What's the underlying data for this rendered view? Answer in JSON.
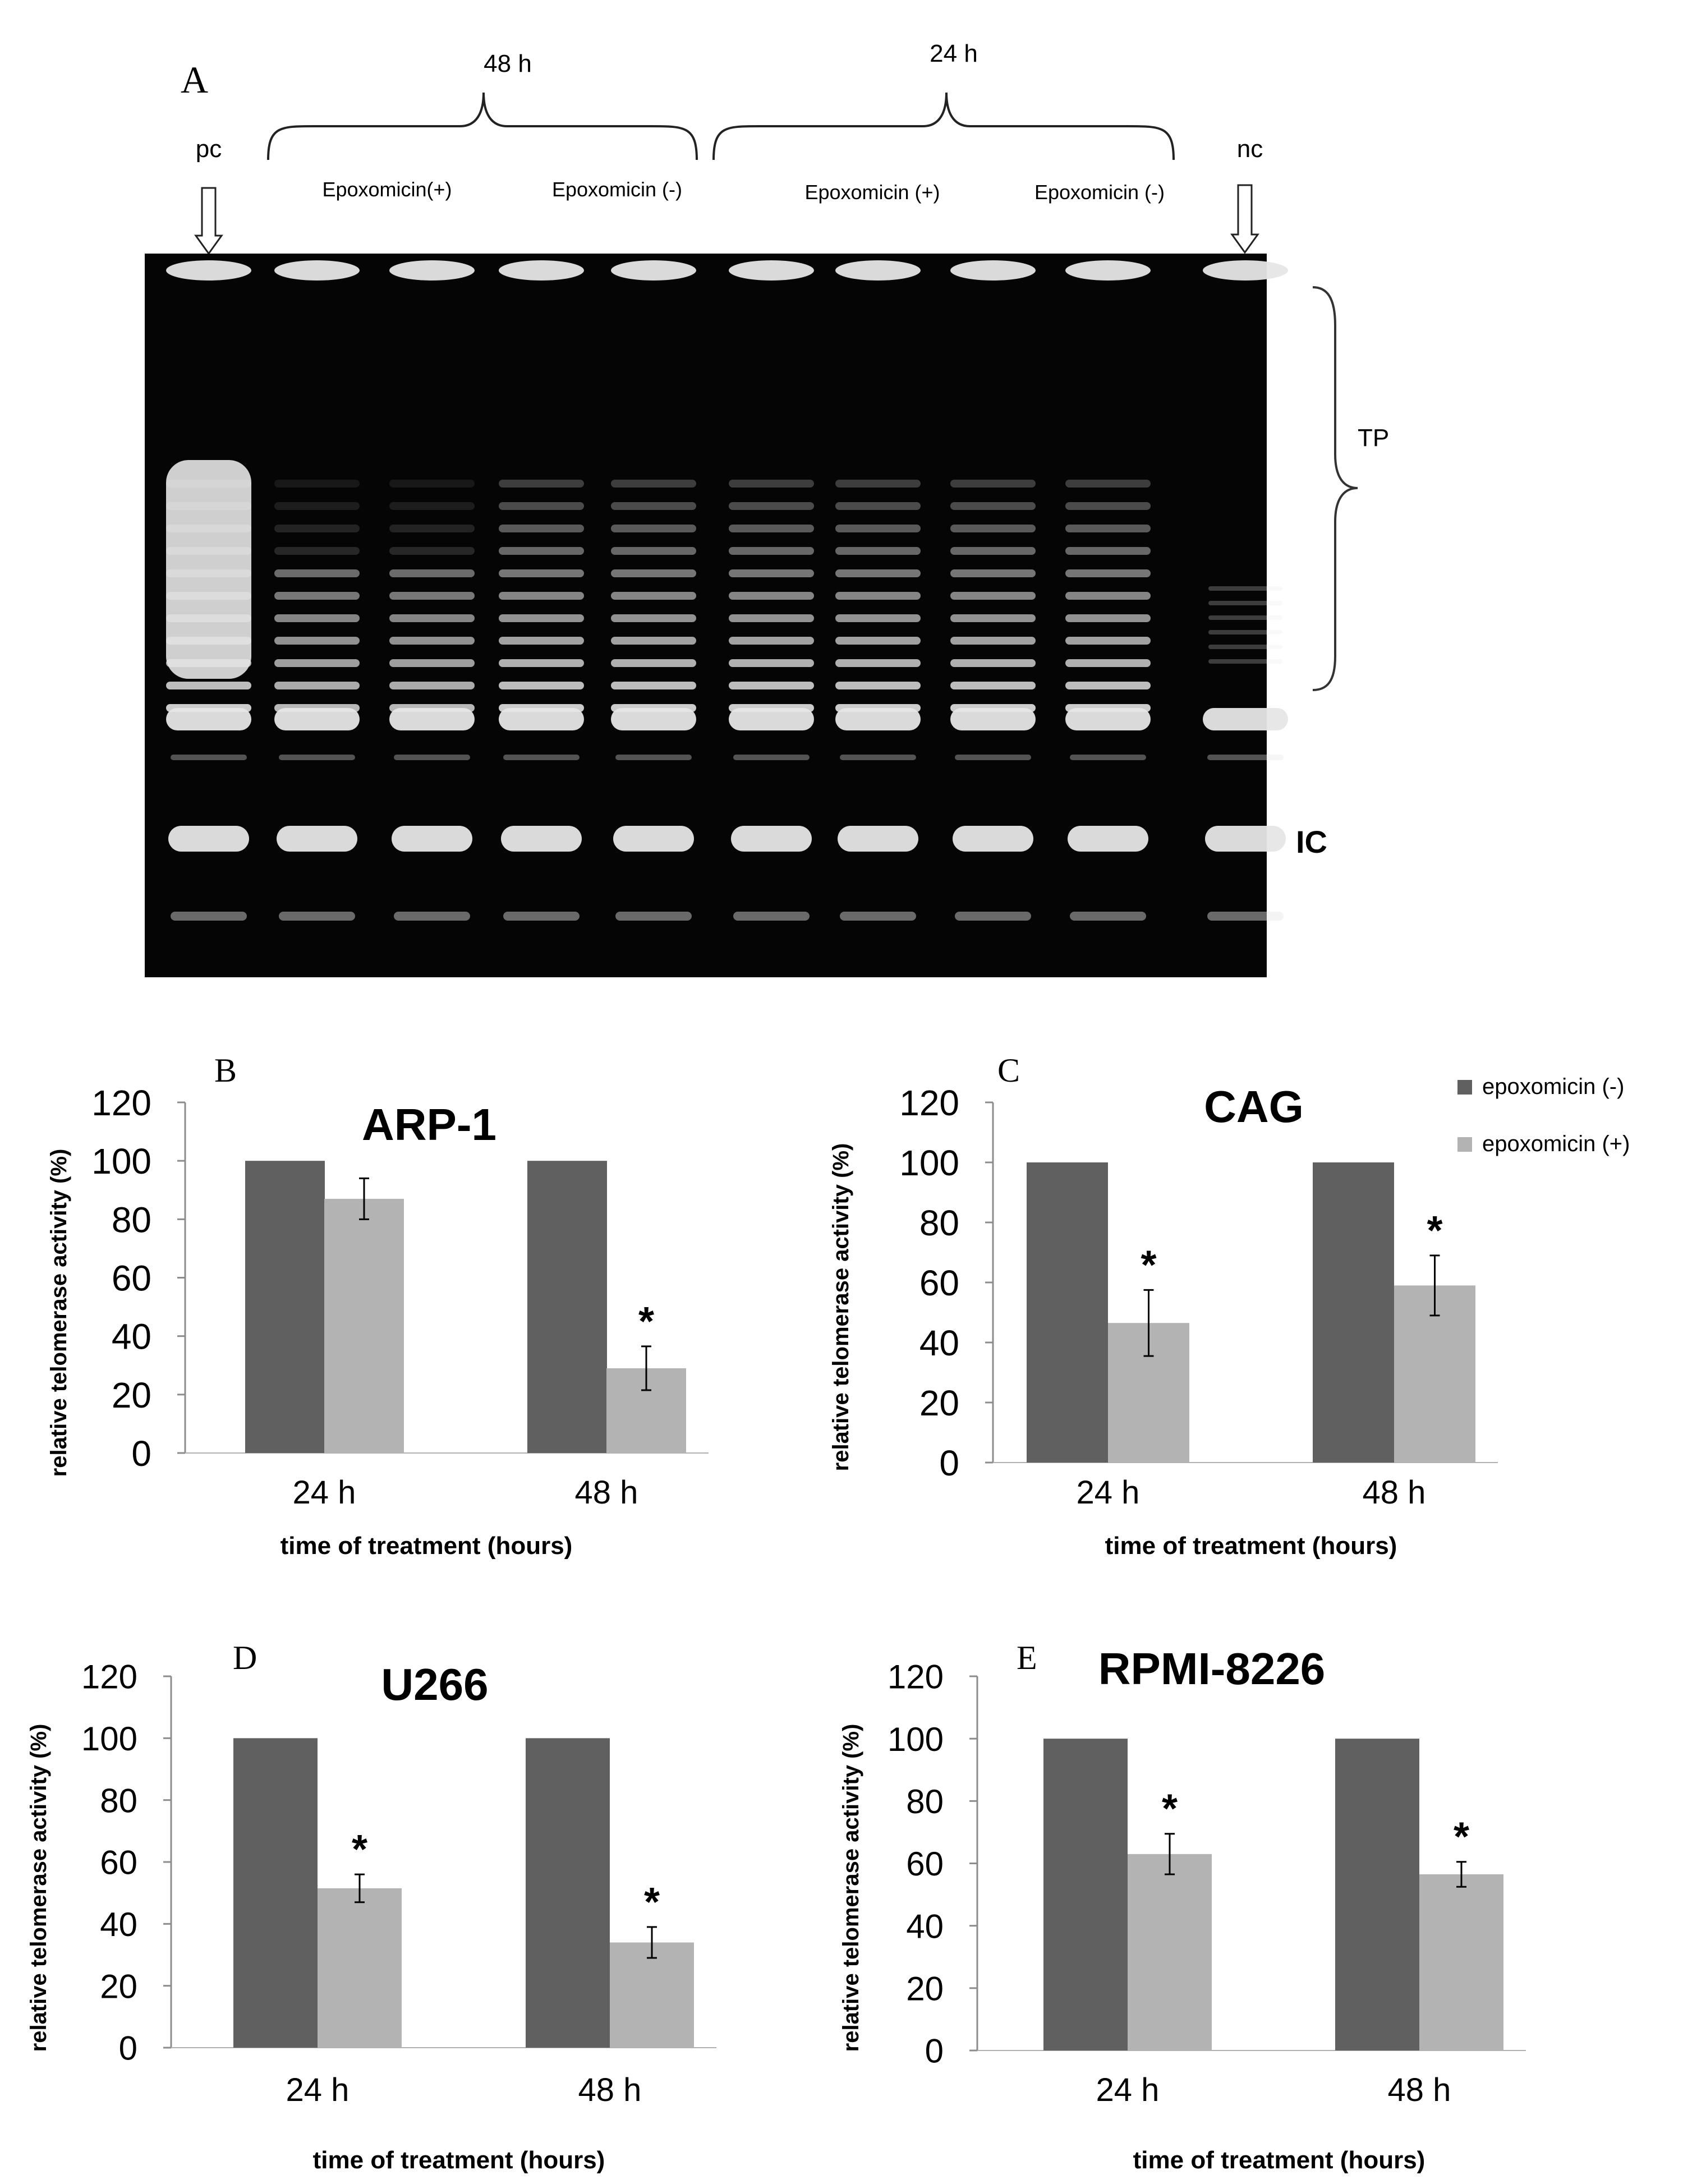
{
  "colors": {
    "minus": "#606060",
    "plus": "#b3b3b3",
    "gel_bg": "#050505",
    "band": "#e6e6e6",
    "axis": "#8c8c8c"
  },
  "gel": {
    "panel_label": "A",
    "group_48h": "48 h",
    "group_24h": "24 h",
    "pc_label": "pc",
    "nc_label": "nc",
    "lane_labels": [
      "Epoxomicin(+)",
      "Epoxomicin (-)",
      "Epoxomicin (+)",
      "Epoxomicin (-)"
    ],
    "tp_label": "TP",
    "ic_label": "IC"
  },
  "legend": {
    "items": [
      {
        "label": "epoxomicin (-)",
        "color_key": "minus"
      },
      {
        "label": "epoxomicin (+)",
        "color_key": "plus"
      }
    ]
  },
  "chart_data": [
    {
      "type": "bar",
      "panel": "B",
      "title": "ARP-1",
      "categories": [
        "24 h",
        "48 h"
      ],
      "series": [
        {
          "name": "epoxomicin (-)",
          "values": [
            100,
            100
          ]
        },
        {
          "name": "epoxomicin (+)",
          "values": [
            87,
            29
          ],
          "errors": [
            7,
            7.5
          ],
          "significant": [
            false,
            true
          ]
        }
      ],
      "xlabel": "time of treatment (hours)",
      "ylabel": "relative telomerase activity (%)",
      "ylim": [
        0,
        120
      ],
      "yticks": [
        0,
        20,
        40,
        60,
        80,
        100,
        120
      ],
      "significance_mark": "*"
    },
    {
      "type": "bar",
      "panel": "C",
      "title": "CAG",
      "categories": [
        "24 h",
        "48 h"
      ],
      "series": [
        {
          "name": "epoxomicin (-)",
          "values": [
            100,
            100
          ]
        },
        {
          "name": "epoxomicin (+)",
          "values": [
            46.5,
            59
          ],
          "errors": [
            11,
            10
          ],
          "significant": [
            true,
            true
          ]
        }
      ],
      "xlabel": "time of treatment (hours)",
      "ylabel": "relative telomerase activity (%)",
      "ylim": [
        0,
        120
      ],
      "yticks": [
        0,
        20,
        40,
        60,
        80,
        100,
        120
      ],
      "significance_mark": "*"
    },
    {
      "type": "bar",
      "panel": "D",
      "title": "U266",
      "categories": [
        "24 h",
        "48 h"
      ],
      "series": [
        {
          "name": "epoxomicin (-)",
          "values": [
            100,
            100
          ]
        },
        {
          "name": "epoxomicin (+)",
          "values": [
            51.5,
            34
          ],
          "errors": [
            4.5,
            5
          ],
          "significant": [
            true,
            true
          ]
        }
      ],
      "xlabel": "time of treatment (hours)",
      "ylabel": "relative telomerase activity (%)",
      "ylim": [
        0,
        120
      ],
      "yticks": [
        0,
        20,
        40,
        60,
        80,
        100,
        120
      ],
      "significance_mark": "*"
    },
    {
      "type": "bar",
      "panel": "E",
      "title": "RPMI-8226",
      "categories": [
        "24 h",
        "48 h"
      ],
      "series": [
        {
          "name": "epoxomicin (-)",
          "values": [
            100,
            100
          ]
        },
        {
          "name": "epoxomicin (+)",
          "values": [
            63,
            56.5
          ],
          "errors": [
            6.5,
            4
          ],
          "significant": [
            true,
            true
          ]
        }
      ],
      "xlabel": "time of treatment (hours)",
      "ylabel": "relative telomerase activity (%)",
      "ylim": [
        0,
        120
      ],
      "yticks": [
        0,
        20,
        40,
        60,
        80,
        100,
        120
      ],
      "significance_mark": "*"
    }
  ]
}
